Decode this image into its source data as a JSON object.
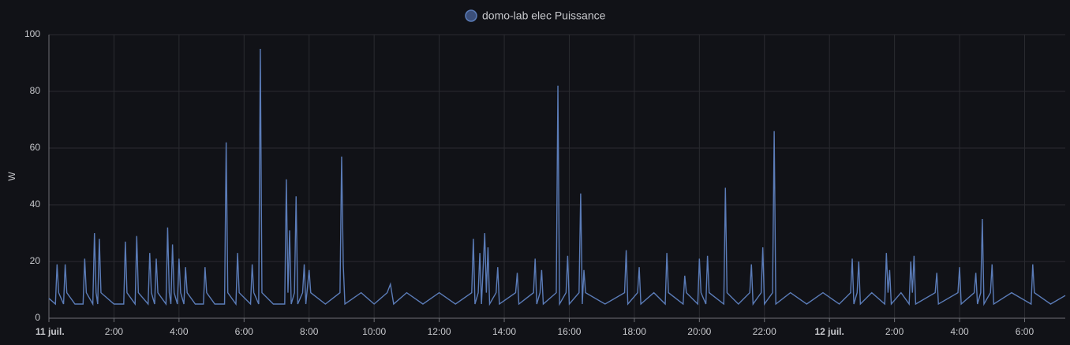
{
  "chart_data": {
    "type": "line",
    "legend_label": "domo-lab elec Puissance",
    "y_label": "W",
    "x": [
      0,
      0.2,
      0.25,
      0.3,
      0.45,
      0.5,
      0.55,
      0.8,
      1.05,
      1.1,
      1.15,
      1.35,
      1.4,
      1.45,
      1.5,
      1.55,
      1.6,
      2.0,
      2.3,
      2.35,
      2.4,
      2.65,
      2.7,
      2.75,
      3.05,
      3.1,
      3.15,
      3.25,
      3.3,
      3.35,
      3.6,
      3.65,
      3.7,
      3.75,
      3.8,
      3.85,
      3.95,
      4.0,
      4.05,
      4.15,
      4.2,
      4.25,
      4.5,
      4.75,
      4.8,
      4.85,
      5.1,
      5.4,
      5.45,
      5.5,
      5.75,
      5.8,
      5.85,
      6.2,
      6.25,
      6.3,
      6.45,
      6.5,
      6.55,
      6.9,
      7.25,
      7.3,
      7.35,
      7.4,
      7.45,
      7.55,
      7.6,
      7.65,
      7.8,
      7.85,
      7.9,
      8.0,
      8.05,
      8.5,
      8.95,
      9.0,
      9.05,
      9.1,
      9.6,
      10.0,
      10.4,
      10.5,
      10.6,
      11.0,
      11.5,
      12.0,
      12.5,
      13.0,
      13.05,
      13.1,
      13.2,
      13.25,
      13.3,
      13.4,
      13.45,
      13.5,
      13.55,
      13.75,
      13.8,
      13.85,
      14.35,
      14.4,
      14.45,
      14.9,
      14.95,
      15.0,
      15.1,
      15.15,
      15.2,
      15.6,
      15.65,
      15.7,
      15.9,
      15.95,
      16.0,
      16.3,
      16.35,
      16.4,
      16.45,
      16.5,
      17.1,
      17.7,
      17.75,
      17.8,
      18.1,
      18.15,
      18.2,
      18.6,
      18.95,
      19.0,
      19.05,
      19.5,
      19.55,
      19.6,
      19.95,
      20.0,
      20.05,
      20.2,
      20.25,
      20.3,
      20.75,
      20.8,
      20.85,
      21.2,
      21.55,
      21.6,
      21.65,
      21.9,
      21.95,
      22.0,
      22.25,
      22.3,
      22.35,
      22.8,
      23.3,
      23.8,
      24.3,
      24.65,
      24.7,
      24.75,
      24.85,
      24.9,
      24.95,
      25.3,
      25.7,
      25.75,
      25.8,
      25.85,
      25.9,
      26.2,
      26.45,
      26.5,
      26.55,
      26.6,
      26.65,
      27.25,
      27.3,
      27.35,
      27.95,
      28.0,
      28.05,
      28.45,
      28.5,
      28.55,
      28.65,
      28.7,
      28.75,
      28.95,
      29.0,
      29.05,
      29.6,
      30.2,
      30.25,
      30.3,
      30.8,
      31.25
    ],
    "series": [
      {
        "name": "domo-lab elec Puissance",
        "color": "#5b7cb8",
        "values": [
          7,
          5,
          19,
          9,
          5,
          19,
          9,
          5,
          5,
          21,
          9,
          5,
          30,
          9,
          5,
          28,
          9,
          5,
          5,
          27,
          9,
          5,
          29,
          9,
          5,
          23,
          9,
          5,
          21,
          9,
          5,
          32,
          9,
          5,
          26,
          9,
          5,
          21,
          9,
          5,
          18,
          9,
          5,
          5,
          18,
          9,
          5,
          5,
          62,
          9,
          5,
          23,
          9,
          5,
          19,
          9,
          5,
          95,
          9,
          5,
          5,
          49,
          9,
          31,
          5,
          9,
          43,
          5,
          9,
          19,
          5,
          17,
          9,
          5,
          9,
          57,
          19,
          5,
          9,
          5,
          9,
          12,
          5,
          9,
          5,
          9,
          5,
          9,
          28,
          5,
          9,
          23,
          5,
          30,
          9,
          25,
          5,
          9,
          18,
          5,
          9,
          16,
          5,
          9,
          21,
          5,
          9,
          17,
          5,
          9,
          82,
          5,
          9,
          22,
          5,
          9,
          44,
          5,
          17,
          9,
          5,
          9,
          24,
          5,
          9,
          18,
          5,
          9,
          5,
          23,
          9,
          5,
          15,
          9,
          5,
          21,
          9,
          5,
          22,
          9,
          5,
          46,
          9,
          5,
          9,
          19,
          5,
          9,
          25,
          5,
          9,
          66,
          5,
          9,
          5,
          9,
          5,
          9,
          21,
          5,
          9,
          20,
          5,
          9,
          5,
          23,
          9,
          17,
          5,
          9,
          5,
          20,
          9,
          22,
          5,
          9,
          16,
          5,
          9,
          18,
          5,
          9,
          16,
          5,
          9,
          35,
          5,
          9,
          19,
          5,
          9,
          5,
          19,
          9,
          5,
          8
        ]
      }
    ],
    "xlim": [
      0,
      31.25
    ],
    "xticks": [
      {
        "value": 0,
        "label": "11 juil."
      },
      {
        "value": 2,
        "label": "2:00"
      },
      {
        "value": 4,
        "label": "4:00"
      },
      {
        "value": 6,
        "label": "6:00"
      },
      {
        "value": 8,
        "label": "8:00"
      },
      {
        "value": 10,
        "label": "10:00"
      },
      {
        "value": 12,
        "label": "12:00"
      },
      {
        "value": 14,
        "label": "14:00"
      },
      {
        "value": 16,
        "label": "16:00"
      },
      {
        "value": 18,
        "label": "18:00"
      },
      {
        "value": 20,
        "label": "20:00"
      },
      {
        "value": 22,
        "label": "22:00"
      },
      {
        "value": 24,
        "label": "12 juil."
      },
      {
        "value": 26,
        "label": "2:00"
      },
      {
        "value": 28,
        "label": "4:00"
      },
      {
        "value": 30,
        "label": "6:00"
      }
    ],
    "ylim": [
      0,
      100
    ],
    "yticks": [
      0,
      20,
      40,
      60,
      80,
      100
    ],
    "grid": true
  }
}
